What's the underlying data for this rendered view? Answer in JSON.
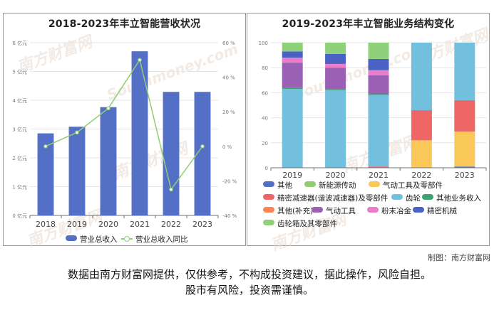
{
  "watermark": {
    "text": "南方财富网",
    "sub": "Southmoney.com"
  },
  "chart_data": [
    {
      "type": "bar+line",
      "title": "2018-2023年丰立智能营收状况",
      "categories": [
        "2018",
        "2019",
        "2020",
        "2021",
        "2022",
        "2023"
      ],
      "series": [
        {
          "name": "营业总收入",
          "kind": "bar",
          "unit": "亿元",
          "values": [
            2.85,
            3.08,
            3.76,
            5.7,
            4.29,
            4.29
          ]
        },
        {
          "name": "营业总收入同比",
          "kind": "line",
          "unit": "%",
          "values": [
            0,
            8,
            22,
            50,
            -25,
            0
          ]
        }
      ],
      "ylim_left": [
        0,
        6
      ],
      "yticks_left": [
        "0 亿元",
        "1 亿元",
        "2 亿元",
        "3 亿元",
        "4 亿元",
        "5 亿元",
        "6 亿元"
      ],
      "ylim_right": [
        -40,
        60
      ],
      "yticks_right": [
        "-40 %",
        "-20 %",
        "0 %",
        "20 %",
        "40 %",
        "60 %"
      ],
      "colors": {
        "bar": "#5470c6",
        "line": "#91cc75"
      }
    },
    {
      "type": "stacked-bar-100",
      "title": "2019-2023年丰立智能业务结构变化",
      "categories": [
        "2019",
        "2020",
        "2021",
        "2022",
        "2023"
      ],
      "ylim": [
        0,
        100
      ],
      "yticks": [
        "0",
        "20",
        "40",
        "60",
        "80",
        "100"
      ],
      "series": [
        {
          "name": "其他",
          "color": "#5470c6",
          "values": [
            0,
            0,
            0,
            0,
            1
          ]
        },
        {
          "name": "新能源传动",
          "color": "#91cc75",
          "values": [
            0,
            0,
            0,
            0,
            0
          ]
        },
        {
          "name": "气动工具及零部件",
          "color": "#fac858",
          "values": [
            0,
            0,
            0,
            22,
            28
          ]
        },
        {
          "name": "精密减速器(谐波减速器)及零部件",
          "color": "#ee6666",
          "values": [
            0,
            0,
            1,
            24,
            25
          ]
        },
        {
          "name": "齿轮",
          "color": "#73c0de",
          "values": [
            63,
            62,
            57,
            54,
            46
          ]
        },
        {
          "name": "其他业务收入",
          "color": "#3ba272",
          "values": [
            1,
            1,
            1,
            0,
            0
          ]
        },
        {
          "name": "其他(补充)",
          "color": "#fc8452",
          "values": [
            0,
            0,
            0,
            0,
            0
          ]
        },
        {
          "name": "气动工具",
          "color": "#9a60b4",
          "values": [
            20,
            17,
            15,
            0,
            0
          ]
        },
        {
          "name": "粉末冶金",
          "color": "#ea7ccc",
          "values": [
            4,
            3,
            4,
            0,
            0
          ]
        },
        {
          "name": "精密机械",
          "color": "#4a62c4",
          "values": [
            5,
            8,
            9,
            0,
            0
          ]
        },
        {
          "name": "齿轮箱及其零部件",
          "color": "#8ed17a",
          "values": [
            7,
            9,
            13,
            0,
            0
          ]
        }
      ]
    }
  ],
  "credit": "制图：南方财富网",
  "disclaimer": {
    "line1": "数据由南方财富网提供，仅供参考，不构成投资建议，据此操作，风险自担。",
    "line2": "股市有风险，投资需谨慎。"
  }
}
